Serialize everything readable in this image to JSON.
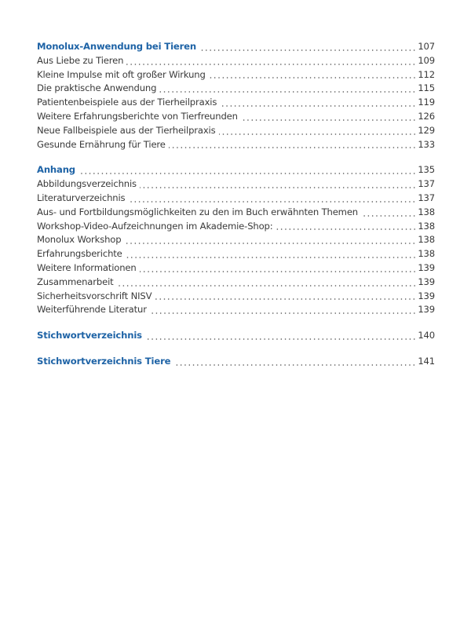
{
  "groups": [
    {
      "heading": {
        "title": "Monolux-Anwendung bei Tieren",
        "page": "107"
      },
      "items": [
        {
          "title": "Aus Liebe zu Tieren",
          "page": "109"
        },
        {
          "title": "Kleine Impulse mit oft großer Wirkung",
          "page": "112"
        },
        {
          "title": "Die praktische Anwendung",
          "page": "115"
        },
        {
          "title": "Patientenbeispiele aus der Tierheilpraxis",
          "page": "119"
        },
        {
          "title": "Weitere Erfahrungsberichte von Tierfreunden",
          "page": "126"
        },
        {
          "title": "Neue Fallbeispiele aus der Tierheilpraxis",
          "page": "129"
        },
        {
          "title": "Gesunde Ernährung für Tiere",
          "page": "133"
        }
      ]
    },
    {
      "heading": {
        "title": "Anhang",
        "page": "135"
      },
      "items": [
        {
          "title": "Abbildungsverzeichnis",
          "page": "137"
        },
        {
          "title": "Literaturverzeichnis",
          "page": "137"
        },
        {
          "title": "Aus- und Fortbildungsmöglichkeiten zu den im Buch erwähnten Themen",
          "page": "138"
        },
        {
          "title": "Workshop-Video-Aufzeichnungen im Akademie-Shop:",
          "page": "138"
        },
        {
          "title": "Monolux Workshop",
          "page": "138"
        },
        {
          "title": "Erfahrungsberichte",
          "page": "138"
        },
        {
          "title": "Weitere Informationen",
          "page": "139"
        },
        {
          "title": "Zusammenarbeit",
          "page": "139"
        },
        {
          "title": "Sicherheitsvorschrift NISV",
          "page": "139"
        },
        {
          "title": "Weiterführende Literatur",
          "page": "139"
        }
      ]
    },
    {
      "heading": {
        "title": "Stichwortverzeichnis",
        "page": "140"
      },
      "items": []
    },
    {
      "heading": {
        "title": "Stichwortverzeichnis Tiere",
        "page": "141"
      },
      "items": []
    }
  ],
  "colors": {
    "heading": "#1e63a6",
    "text": "#3a3a3a"
  }
}
